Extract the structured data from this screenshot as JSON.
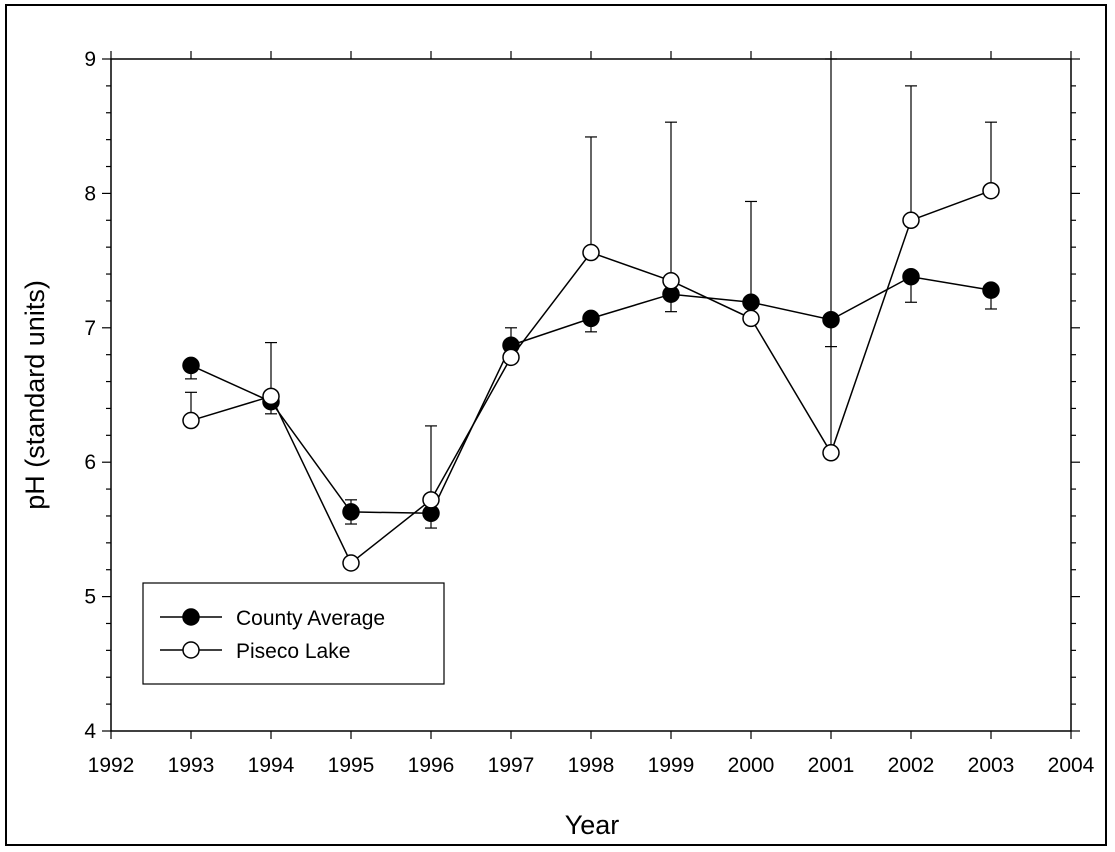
{
  "chart_data": {
    "type": "line",
    "title": "",
    "xlabel": "Year",
    "ylabel": "pH (standard units)",
    "xlim": [
      1992,
      2004
    ],
    "ylim": [
      4,
      9
    ],
    "xticks": [
      1992,
      1993,
      1994,
      1995,
      1996,
      1997,
      1998,
      1999,
      2000,
      2001,
      2002,
      2003,
      2004
    ],
    "yticks": [
      4,
      5,
      6,
      7,
      8,
      9
    ],
    "grid": false,
    "legend_position": "bottom-left",
    "x": [
      1993,
      1994,
      1995,
      1996,
      1997,
      1998,
      1999,
      2000,
      2001,
      2002,
      2003
    ],
    "series": [
      {
        "name": "County Average",
        "marker": "filled-circle",
        "values": [
          6.72,
          6.45,
          5.63,
          5.62,
          6.87,
          7.07,
          7.25,
          7.19,
          7.06,
          7.38,
          7.28
        ],
        "error_low": [
          6.62,
          6.36,
          5.54,
          5.51,
          null,
          6.97,
          7.12,
          null,
          6.86,
          7.19,
          7.14
        ],
        "error_high": [
          null,
          null,
          5.72,
          null,
          7.0,
          null,
          null,
          null,
          null,
          null,
          null
        ]
      },
      {
        "name": "Piseco Lake",
        "marker": "open-circle",
        "values": [
          6.31,
          6.49,
          5.25,
          5.72,
          6.78,
          7.56,
          7.35,
          7.07,
          6.07,
          7.8,
          8.02
        ],
        "error_low": [
          null,
          null,
          null,
          null,
          null,
          null,
          null,
          null,
          null,
          null,
          null
        ],
        "error_high": [
          6.52,
          6.89,
          null,
          6.27,
          null,
          8.42,
          8.53,
          7.94,
          9.0,
          8.8,
          8.53
        ]
      }
    ]
  }
}
